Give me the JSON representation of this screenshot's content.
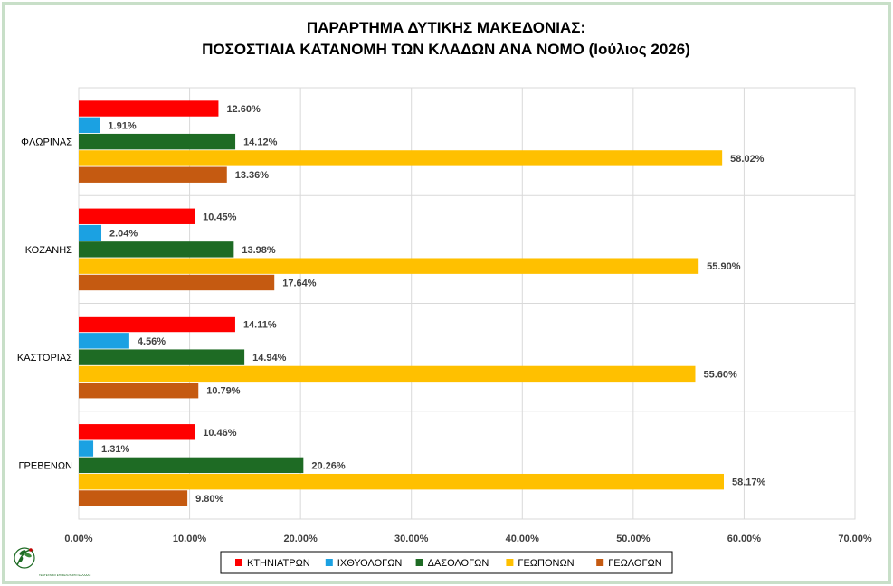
{
  "chart_data": {
    "type": "bar",
    "orientation": "horizontal",
    "title_lines": [
      "ΠΑΡΑΡΤΗΜΑ ΔΥΤΙΚΗΣ ΜΑΚΕΔΟΝΙΑΣ:",
      "ΠΟΣΟΣΤΙΑΙΑ ΚΑΤΑΝΟΜΗ ΤΩΝ ΚΛΑΔΩΝ ΑΝΑ ΝΟΜΟ (Ιούλιος 2026)"
    ],
    "categories": [
      "ΦΛΩΡΙΝΑΣ",
      "ΚΟΖΑΝΗΣ",
      "ΚΑΣΤΟΡΙΑΣ",
      "ΓΡΕΒΕΝΩΝ"
    ],
    "series": [
      {
        "name": "ΚΤΗΝΙΑΤΡΩΝ",
        "color": "#ff0000",
        "values": [
          12.6,
          10.45,
          14.11,
          10.46
        ],
        "labels": [
          "12.60%",
          "10.45%",
          "14.11%",
          "10.46%"
        ]
      },
      {
        "name": "ΙΧΘΥΟΛΟΓΩΝ",
        "color": "#1ba1e2",
        "values": [
          1.91,
          2.04,
          4.56,
          1.31
        ],
        "labels": [
          "1.91%",
          "2.04%",
          "4.56%",
          "1.31%"
        ]
      },
      {
        "name": "ΔΑΣΟΛΟΓΩΝ",
        "color": "#1e6b24",
        "values": [
          14.12,
          13.98,
          14.94,
          20.26
        ],
        "labels": [
          "14.12%",
          "13.98%",
          "14.94%",
          "20.26%"
        ]
      },
      {
        "name": "ΓΕΩΠΟΝΩΝ",
        "color": "#ffc000",
        "values": [
          58.02,
          55.9,
          55.6,
          58.17
        ],
        "labels": [
          "58.02%",
          "55.90%",
          "55.60%",
          "58.17%"
        ]
      },
      {
        "name": "ΓΕΩΛΟΓΩΝ",
        "color": "#c55a11",
        "values": [
          13.36,
          17.64,
          10.79,
          9.8
        ],
        "labels": [
          "13.36%",
          "17.64%",
          "10.79%",
          "9.80%"
        ]
      }
    ],
    "xlim": [
      0,
      70
    ],
    "x_ticks": [
      0,
      10,
      20,
      30,
      40,
      50,
      60,
      70
    ],
    "x_tick_labels": [
      "0.00%",
      "10.00%",
      "20.00%",
      "30.00%",
      "40.00%",
      "50.00%",
      "60.00%",
      "70.00%"
    ],
    "grid": true,
    "legend_position": "bottom"
  },
  "logo": {
    "icon": "olive-branch-logo-icon",
    "text": "ΓΕΩΤΕΧΝΙΚΟ ΕΠΙΜΕΛΗΤΗΡΙΟ ΕΛΛΑΔΑΣ"
  }
}
